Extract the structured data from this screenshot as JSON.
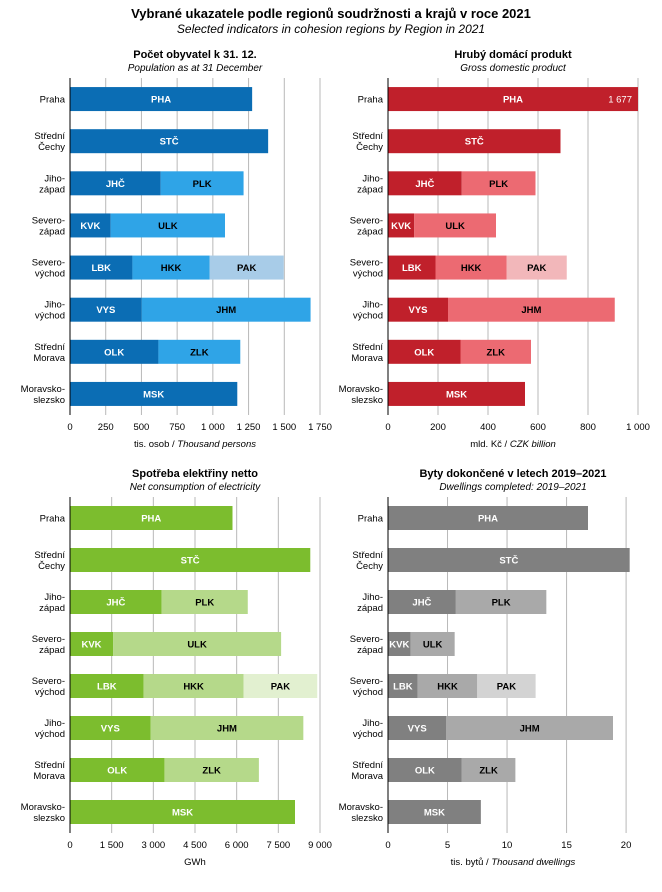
{
  "page": {
    "title": "Vybrané ukazatele podle regionů soudržnosti  a krajů v roce 2021",
    "subtitle": "Selected indicators in cohesion regions  by Region  in 2021"
  },
  "categories": [
    "Praha",
    "Střední Čechy",
    "Jiho- západ",
    "Severo- západ",
    "Severo- východ",
    "Jiho- východ",
    "Střední Morava",
    "Moravsko- slezsko"
  ],
  "category_lines": [
    [
      "Praha"
    ],
    [
      "Střední",
      "Čechy"
    ],
    [
      "Jiho-",
      "západ"
    ],
    [
      "Severo-",
      "západ"
    ],
    [
      "Severo-",
      "východ"
    ],
    [
      "Jiho-",
      "východ"
    ],
    [
      "Střední",
      "Morava"
    ],
    [
      "Moravsko-",
      "slezsko"
    ]
  ],
  "chart_data": [
    {
      "type": "bar",
      "orientation": "horizontal",
      "stacked": true,
      "title": "Počet obyvatel k 31. 12.",
      "subtitle": "Population as at 31 December",
      "xlabel_plain": "tis. osob / ",
      "xlabel_italic": "Thousand persons",
      "xlim": [
        0,
        1750
      ],
      "xticks": [
        0,
        250,
        500,
        750,
        1000,
        1250,
        1500,
        1750
      ],
      "xtick_labels": [
        "0",
        "250",
        "500",
        "750",
        "1 000",
        "1 250",
        "1 500",
        "1 750"
      ],
      "grid": true,
      "colors": [
        "#0b6db4",
        "#2fa4e7",
        "#a8cce8"
      ],
      "text_colors": [
        "#ffffff",
        "#000000",
        "#000000"
      ],
      "rows": [
        [
          {
            "label": "PHA",
            "value": 1275
          }
        ],
        [
          {
            "label": "STČ",
            "value": 1387
          }
        ],
        [
          {
            "label": "JHČ",
            "value": 635
          },
          {
            "label": "PLK",
            "value": 580
          }
        ],
        [
          {
            "label": "KVK",
            "value": 285
          },
          {
            "label": "ULK",
            "value": 800
          }
        ],
        [
          {
            "label": "LBK",
            "value": 437
          },
          {
            "label": "HKK",
            "value": 541
          },
          {
            "label": "PAK",
            "value": 518
          }
        ],
        [
          {
            "label": "VYS",
            "value": 502
          },
          {
            "label": "JHM",
            "value": 1182
          }
        ],
        [
          {
            "label": "OLK",
            "value": 619
          },
          {
            "label": "ZLK",
            "value": 573
          }
        ],
        [
          {
            "label": "MSK",
            "value": 1171
          }
        ]
      ],
      "value_labels": []
    },
    {
      "type": "bar",
      "orientation": "horizontal",
      "stacked": true,
      "title": "Hrubý domácí produkt",
      "subtitle": "Gross domestic product",
      "xlabel_plain": "mld. Kč / ",
      "xlabel_italic": "CZK billion",
      "xlim": [
        0,
        1000
      ],
      "xticks": [
        0,
        200,
        400,
        600,
        800,
        1000
      ],
      "xtick_labels": [
        "0",
        "200",
        "400",
        "600",
        "800",
        "1 000"
      ],
      "grid": true,
      "colors": [
        "#c0202b",
        "#ec6a72",
        "#f2b7ba"
      ],
      "text_colors": [
        "#ffffff",
        "#000000",
        "#000000"
      ],
      "rows": [
        [
          {
            "label": "PHA",
            "value": 1677
          }
        ],
        [
          {
            "label": "STČ",
            "value": 690
          }
        ],
        [
          {
            "label": "JHČ",
            "value": 295
          },
          {
            "label": "PLK",
            "value": 295
          }
        ],
        [
          {
            "label": "KVK",
            "value": 105
          },
          {
            "label": "ULK",
            "value": 327
          }
        ],
        [
          {
            "label": "LBK",
            "value": 190
          },
          {
            "label": "HKK",
            "value": 285
          },
          {
            "label": "PAK",
            "value": 240
          }
        ],
        [
          {
            "label": "VYS",
            "value": 240
          },
          {
            "label": "JHM",
            "value": 667
          }
        ],
        [
          {
            "label": "OLK",
            "value": 290
          },
          {
            "label": "ZLK",
            "value": 282
          }
        ],
        [
          {
            "label": "MSK",
            "value": 548
          }
        ]
      ],
      "value_labels": [
        {
          "row": 0,
          "text": "1 677"
        }
      ]
    },
    {
      "type": "bar",
      "orientation": "horizontal",
      "stacked": true,
      "title": "Spotřeba elektřiny netto",
      "subtitle": "Net consumption of electricity",
      "xlabel_plain": "GWh",
      "xlabel_italic": "",
      "xlim": [
        0,
        9000
      ],
      "xticks": [
        0,
        1500,
        3000,
        4500,
        6000,
        7500,
        9000
      ],
      "xtick_labels": [
        "0",
        "1 500",
        "3 000",
        "4 500",
        "6 000",
        "7 500",
        "9 000"
      ],
      "grid": true,
      "colors": [
        "#7cbd2e",
        "#b5d98a",
        "#e2f0d0"
      ],
      "text_colors": [
        "#ffffff",
        "#000000",
        "#000000"
      ],
      "rows": [
        [
          {
            "label": "PHA",
            "value": 5850
          }
        ],
        [
          {
            "label": "STČ",
            "value": 8650
          }
        ],
        [
          {
            "label": "JHČ",
            "value": 3300
          },
          {
            "label": "PLK",
            "value": 3100
          }
        ],
        [
          {
            "label": "KVK",
            "value": 1550
          },
          {
            "label": "ULK",
            "value": 6050
          }
        ],
        [
          {
            "label": "LBK",
            "value": 2650
          },
          {
            "label": "HKK",
            "value": 3600
          },
          {
            "label": "PAK",
            "value": 2650
          }
        ],
        [
          {
            "label": "VYS",
            "value": 2900
          },
          {
            "label": "JHM",
            "value": 5500
          }
        ],
        [
          {
            "label": "OLK",
            "value": 3400
          },
          {
            "label": "ZLK",
            "value": 3400
          }
        ],
        [
          {
            "label": "MSK",
            "value": 8100
          }
        ]
      ],
      "value_labels": []
    },
    {
      "type": "bar",
      "orientation": "horizontal",
      "stacked": true,
      "title": "Byty dokončené v letech 2019–2021",
      "subtitle": "Dwellings completed: 2019–2021",
      "xlabel_plain": "tis. bytů / ",
      "xlabel_italic": "Thousand dwellings",
      "xlim": [
        0,
        21
      ],
      "xticks": [
        0,
        5,
        10,
        15,
        20
      ],
      "xtick_labels": [
        "0",
        "5",
        "10",
        "15",
        "20"
      ],
      "grid": true,
      "colors": [
        "#808080",
        "#a9a9a9",
        "#d3d3d3"
      ],
      "text_colors": [
        "#ffffff",
        "#000000",
        "#000000"
      ],
      "rows": [
        [
          {
            "label": "PHA",
            "value": 16.8
          }
        ],
        [
          {
            "label": "STČ",
            "value": 20.3
          }
        ],
        [
          {
            "label": "JHČ",
            "value": 5.7
          },
          {
            "label": "PLK",
            "value": 7.6
          }
        ],
        [
          {
            "label": "KVK",
            "value": 1.9
          },
          {
            "label": "ULK",
            "value": 3.7
          }
        ],
        [
          {
            "label": "LBK",
            "value": 2.5
          },
          {
            "label": "HKK",
            "value": 5.0
          },
          {
            "label": "PAK",
            "value": 4.9
          }
        ],
        [
          {
            "label": "VYS",
            "value": 4.9
          },
          {
            "label": "JHM",
            "value": 14.0
          }
        ],
        [
          {
            "label": "OLK",
            "value": 6.2
          },
          {
            "label": "ZLK",
            "value": 4.5
          }
        ],
        [
          {
            "label": "MSK",
            "value": 7.8
          }
        ]
      ],
      "value_labels": []
    }
  ]
}
